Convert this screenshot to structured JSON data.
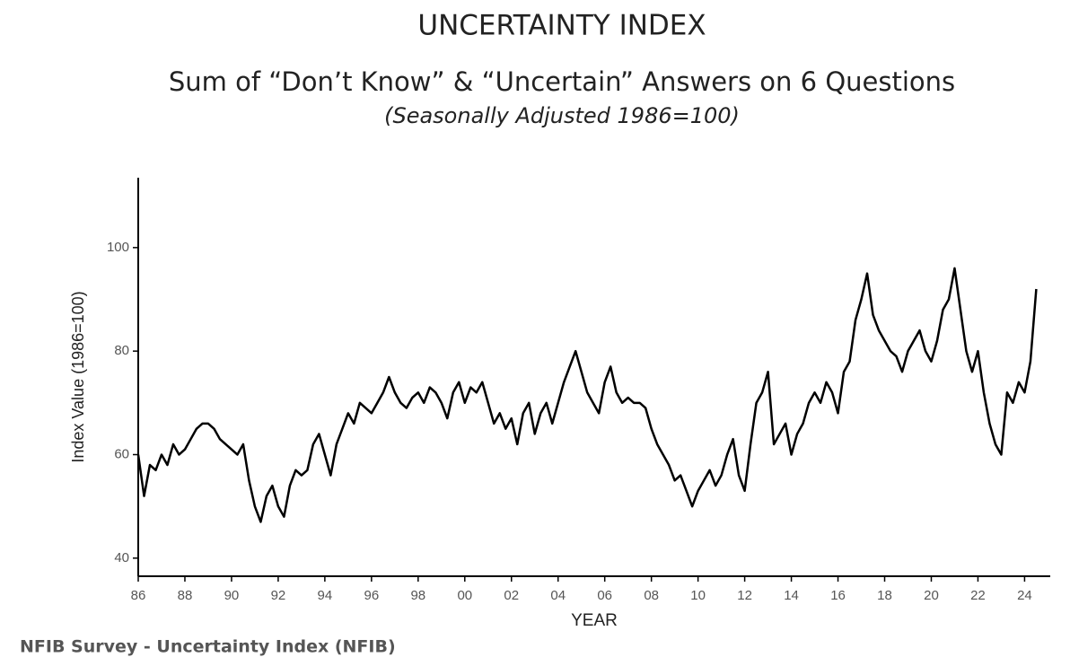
{
  "chart_data": {
    "type": "line",
    "title": "UNCERTAINTY INDEX",
    "subtitle": "Sum of “Don’t Know” & “Uncertain” Answers on 6 Questions",
    "note": "(Seasonally Adjusted 1986=100)",
    "ylabel": "Index Value (1986=100)",
    "xlabel": "YEAR",
    "source": "NFIB Survey - Uncertainty Index (NFIB)",
    "color": "#000000",
    "xlim": [
      1986,
      2025.1
    ],
    "ylim": [
      36.5,
      113.5
    ],
    "yticks": [
      40,
      60,
      80,
      100
    ],
    "xticks": [
      {
        "value": 1986,
        "label": "86"
      },
      {
        "value": 1988,
        "label": "88"
      },
      {
        "value": 1990,
        "label": "90"
      },
      {
        "value": 1992,
        "label": "92"
      },
      {
        "value": 1994,
        "label": "94"
      },
      {
        "value": 1996,
        "label": "96"
      },
      {
        "value": 1998,
        "label": "98"
      },
      {
        "value": 2000,
        "label": "00"
      },
      {
        "value": 2002,
        "label": "02"
      },
      {
        "value": 2004,
        "label": "04"
      },
      {
        "value": 2006,
        "label": "06"
      },
      {
        "value": 2008,
        "label": "08"
      },
      {
        "value": 2010,
        "label": "10"
      },
      {
        "value": 2012,
        "label": "12"
      },
      {
        "value": 2014,
        "label": "14"
      },
      {
        "value": 2016,
        "label": "16"
      },
      {
        "value": 2018,
        "label": "18"
      },
      {
        "value": 2020,
        "label": "20"
      },
      {
        "value": 2022,
        "label": "22"
      },
      {
        "value": 2024,
        "label": "24"
      }
    ],
    "x": [
      1986,
      1986.25,
      1986.5,
      1986.75,
      1987,
      1987.25,
      1987.5,
      1987.75,
      1988,
      1988.25,
      1988.5,
      1988.75,
      1989,
      1989.25,
      1989.5,
      1989.75,
      1990,
      1990.25,
      1990.5,
      1990.75,
      1991,
      1991.25,
      1991.5,
      1991.75,
      1992,
      1992.25,
      1992.5,
      1992.75,
      1993,
      1993.25,
      1993.5,
      1993.75,
      1994,
      1994.25,
      1994.5,
      1994.75,
      1995,
      1995.25,
      1995.5,
      1995.75,
      1996,
      1996.25,
      1996.5,
      1996.75,
      1997,
      1997.25,
      1997.5,
      1997.75,
      1998,
      1998.25,
      1998.5,
      1998.75,
      1999,
      1999.25,
      1999.5,
      1999.75,
      2000,
      2000.25,
      2000.5,
      2000.75,
      2001,
      2001.25,
      2001.5,
      2001.75,
      2002,
      2002.25,
      2002.5,
      2002.75,
      2003,
      2003.25,
      2003.5,
      2003.75,
      2004,
      2004.25,
      2004.5,
      2004.75,
      2005,
      2005.25,
      2005.5,
      2005.75,
      2006,
      2006.25,
      2006.5,
      2006.75,
      2007,
      2007.25,
      2007.5,
      2007.75,
      2008,
      2008.25,
      2008.5,
      2008.75,
      2009,
      2009.25,
      2009.5,
      2009.75,
      2010,
      2010.25,
      2010.5,
      2010.75,
      2011,
      2011.25,
      2011.5,
      2011.75,
      2012,
      2012.25,
      2012.5,
      2012.75,
      2013,
      2013.25,
      2013.5,
      2013.75,
      2014,
      2014.25,
      2014.5,
      2014.75,
      2015,
      2015.25,
      2015.5,
      2015.75,
      2016,
      2016.25,
      2016.5,
      2016.75,
      2017,
      2017.25,
      2017.5,
      2017.75,
      2018,
      2018.25,
      2018.5,
      2018.75,
      2019,
      2019.25,
      2019.5,
      2019.75,
      2020,
      2020.25,
      2020.5,
      2020.75,
      2021,
      2021.25,
      2021.5,
      2021.75,
      2022,
      2022.25,
      2022.5,
      2022.75,
      2023,
      2023.25,
      2023.5,
      2023.75,
      2024,
      2024.25,
      2024.5
    ],
    "values": [
      60,
      52,
      58,
      57,
      60,
      58,
      62,
      60,
      61,
      63,
      65,
      66,
      66,
      65,
      63,
      62,
      61,
      60,
      62,
      55,
      50,
      47,
      52,
      54,
      50,
      48,
      54,
      57,
      56,
      57,
      62,
      64,
      60,
      56,
      62,
      65,
      68,
      66,
      70,
      69,
      68,
      70,
      72,
      75,
      72,
      70,
      69,
      71,
      72,
      70,
      73,
      72,
      70,
      67,
      72,
      74,
      70,
      73,
      72,
      74,
      70,
      66,
      68,
      65,
      67,
      62,
      68,
      70,
      64,
      68,
      70,
      66,
      70,
      74,
      77,
      80,
      76,
      72,
      70,
      68,
      74,
      77,
      72,
      70,
      71,
      70,
      70,
      69,
      65,
      62,
      60,
      58,
      55,
      56,
      53,
      50,
      53,
      55,
      57,
      54,
      56,
      60,
      63,
      56,
      53,
      62,
      70,
      72,
      76,
      62,
      64,
      66,
      60,
      64,
      66,
      70,
      72,
      70,
      74,
      72,
      68,
      76,
      78,
      86,
      90,
      95,
      87,
      84,
      82,
      80,
      79,
      76,
      80,
      82,
      84,
      80,
      78,
      82,
      88,
      90,
      96,
      88,
      80,
      76,
      80,
      72,
      66,
      62,
      60,
      72,
      70,
      74,
      72,
      78,
      92
    ]
  }
}
